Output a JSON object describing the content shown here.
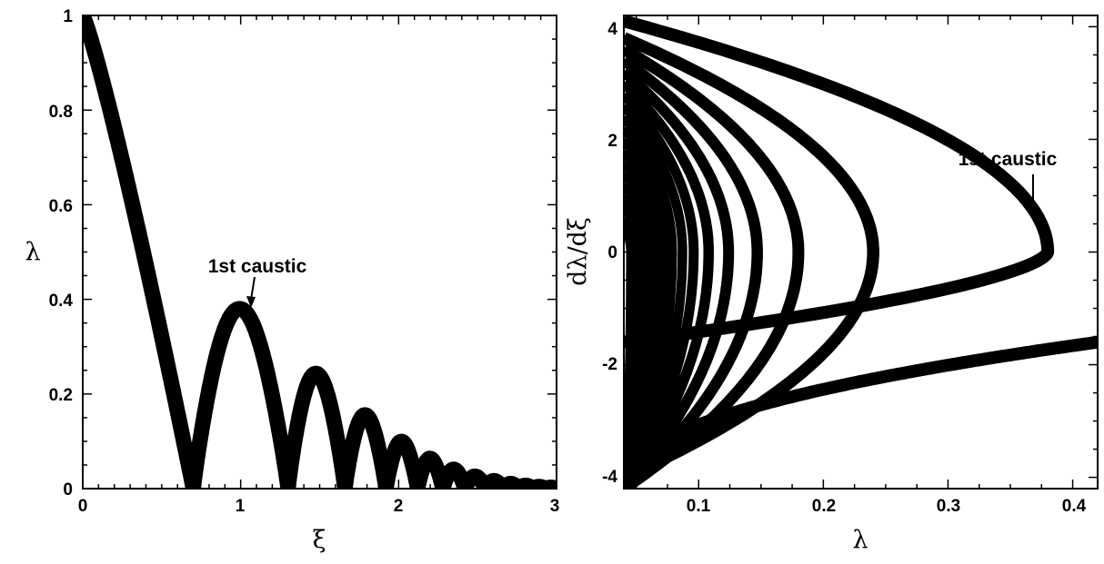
{
  "chart_data": [
    {
      "type": "line",
      "xlabel": "ξ",
      "ylabel": "λ",
      "xlim": [
        0,
        3
      ],
      "ylim": [
        0,
        1
      ],
      "x_ticks": [
        "0",
        "1",
        "2",
        "3"
      ],
      "y_ticks": [
        "0",
        "0.2",
        "0.4",
        "0.6",
        "0.8",
        "1"
      ],
      "series": [
        {
          "description": "thick black band |λ(ξ)| showing decaying oscillating arches",
          "x": [
            0,
            0.1,
            0.2,
            0.3,
            0.4,
            0.5,
            0.6,
            0.7,
            0.8,
            0.9,
            1.0,
            1.1,
            1.2,
            1.3,
            1.4,
            1.5,
            1.6,
            1.7,
            1.8,
            1.9,
            2.0,
            2.1,
            2.2,
            2.3,
            2.4,
            2.5,
            2.6,
            2.7,
            2.8,
            2.9,
            3.0
          ],
          "y": [
            1.0,
            0.87,
            0.73,
            0.58,
            0.42,
            0.26,
            0.1,
            0.0,
            0.25,
            0.37,
            0.37,
            0.32,
            0.2,
            0.0,
            0.22,
            0.23,
            0.14,
            0.0,
            0.16,
            0.12,
            0.0,
            0.12,
            0.1,
            0.0,
            0.1,
            0.08,
            0.07,
            0.07,
            0.06,
            0.06,
            0.05
          ]
        }
      ],
      "annotations": [
        {
          "text": "1st caustic",
          "x": 1.05,
          "y": 0.37
        }
      ]
    },
    {
      "type": "line",
      "xlabel": "λ",
      "ylabel": "dλ/dξ",
      "xlim": [
        0.04,
        0.42
      ],
      "ylim": [
        -4.2,
        4.2
      ],
      "x_ticks": [
        "0.1",
        "0.2",
        "0.3",
        "0.4"
      ],
      "y_ticks": [
        "-4",
        "-2",
        "0",
        "2",
        "4"
      ],
      "series": [
        {
          "vertex": 0.38,
          "start": 4.1,
          "end_x": 0.42,
          "end_y": -1.6
        },
        {
          "vertex": 0.24,
          "start": 3.8,
          "end_y": -4.0
        },
        {
          "vertex": 0.18,
          "start": 3.6,
          "end_y": -4.2
        },
        {
          "vertex": 0.147,
          "start": 3.4,
          "end_y": -4.2
        },
        {
          "vertex": 0.124,
          "start": 3.2,
          "end_y": -4.2
        },
        {
          "vertex": 0.108,
          "start": 3.0,
          "end_y": -4.2
        },
        {
          "vertex": 0.096,
          "start": 2.8,
          "end_y": -4.2
        },
        {
          "vertex": 0.087,
          "start": 2.6,
          "end_y": -4.2
        },
        {
          "vertex": 0.079,
          "start": 2.4,
          "end_y": -4.2
        },
        {
          "vertex": 0.073,
          "start": 2.2,
          "end_y": -4.2
        },
        {
          "vertex": 0.068,
          "start": 2.0,
          "end_y": -4.2
        },
        {
          "vertex": 0.063,
          "start": 1.8,
          "end_y": -4.2
        },
        {
          "vertex": 0.059,
          "start": 1.6,
          "end_y": -4.2
        },
        {
          "vertex": 0.056,
          "start": 1.4,
          "end_y": -4.2
        },
        {
          "vertex": 0.053,
          "start": 1.2,
          "end_y": -4.2
        },
        {
          "vertex": 0.05,
          "start": 1.0,
          "end_y": -4.2
        },
        {
          "vertex": 0.048,
          "start": 0.8,
          "end_y": -4.2
        },
        {
          "vertex": 0.046,
          "start": 0.6,
          "end_y": -4.2
        },
        {
          "vertex": 0.044,
          "start": 0.4,
          "end_y": -4.2
        }
      ],
      "annotations": [
        {
          "text": "1st caustic",
          "x": 0.37,
          "y": 0.8
        }
      ]
    }
  ]
}
